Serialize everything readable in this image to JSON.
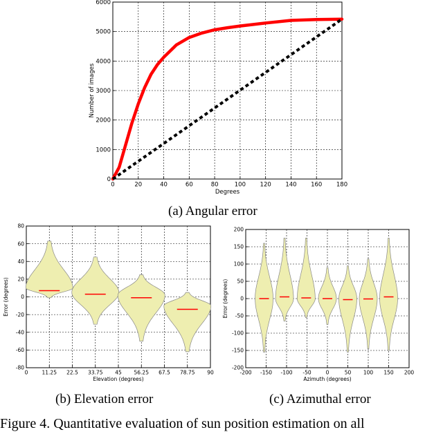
{
  "captions": {
    "a": "(a) Angular error",
    "b": "(b) Elevation error",
    "c": "(c) Azimuthal error",
    "figure": "Figure 4. Quantitative evaluation of sun position estimation on all"
  },
  "chart_data": [
    {
      "type": "line",
      "xlabel": "Degrees",
      "ylabel": "Number of images",
      "xlim": [
        0,
        180
      ],
      "ylim": [
        0,
        6000
      ],
      "xticks": [
        0,
        20,
        40,
        60,
        80,
        100,
        120,
        140,
        160,
        180
      ],
      "yticks": [
        0,
        1000,
        2000,
        3000,
        4000,
        5000,
        6000
      ],
      "grid": true,
      "series": [
        {
          "style": "solid",
          "color": "#ff0000",
          "x": [
            0,
            5,
            10,
            15,
            20,
            25,
            30,
            35,
            40,
            50,
            60,
            70,
            80,
            90,
            100,
            120,
            140,
            160,
            180
          ],
          "y": [
            0,
            400,
            1150,
            1900,
            2550,
            3100,
            3550,
            3880,
            4130,
            4550,
            4800,
            4950,
            5060,
            5130,
            5190,
            5290,
            5380,
            5410,
            5420
          ]
        },
        {
          "style": "dashed",
          "color": "#000000",
          "x": [
            0,
            180
          ],
          "y": [
            0,
            5420
          ]
        }
      ]
    },
    {
      "type": "violin",
      "xlabel": "Elevation (degrees)",
      "ylabel": "Error (degrees)",
      "xlim": [
        0,
        90
      ],
      "ylim": [
        -80,
        80
      ],
      "xticks": [
        "0",
        "11.25",
        "22.5",
        "33.75",
        "45",
        "56.25",
        "67.5",
        "78.75",
        "90"
      ],
      "yticks": [
        -80,
        -60,
        -40,
        -20,
        0,
        20,
        40,
        60,
        80
      ],
      "grid": true,
      "fill_color": "#eeeeb0",
      "median_color": "#ff0000",
      "violins": [
        {
          "x": 11.25,
          "min": -1,
          "max": 63,
          "median": 7,
          "mode": 10
        },
        {
          "x": 33.75,
          "min": -31,
          "max": 45,
          "median": 3,
          "mode": 5
        },
        {
          "x": 56.25,
          "min": -50,
          "max": 25,
          "median": -1,
          "mode": 2
        },
        {
          "x": 78.75,
          "min": -62,
          "max": 5,
          "median": -14,
          "mode": -10
        }
      ]
    },
    {
      "type": "violin",
      "xlabel": "Azimuth (degrees)",
      "ylabel": "Error (degrees)",
      "xlim": [
        -200,
        200
      ],
      "ylim": [
        -200,
        200
      ],
      "xticks": [
        -200,
        -150,
        -100,
        -50,
        0,
        50,
        100,
        150,
        200
      ],
      "yticks": [
        -200,
        -150,
        -100,
        -50,
        0,
        50,
        100,
        150,
        200
      ],
      "grid": true,
      "fill_color": "#eeeeb0",
      "median_color": "#ff0000",
      "violins": [
        {
          "x": -155,
          "min": -155,
          "max": 160,
          "median": 0,
          "mode": 0
        },
        {
          "x": -105,
          "min": -65,
          "max": 175,
          "median": 5,
          "mode": 0
        },
        {
          "x": -52,
          "min": -55,
          "max": 175,
          "median": 2,
          "mode": 0
        },
        {
          "x": 0,
          "min": -75,
          "max": 90,
          "median": 0,
          "mode": 0
        },
        {
          "x": 50,
          "min": -155,
          "max": 95,
          "median": -3,
          "mode": 0
        },
        {
          "x": 100,
          "min": -145,
          "max": 115,
          "median": -1,
          "mode": 0
        },
        {
          "x": 150,
          "min": -150,
          "max": 175,
          "median": 5,
          "mode": 0
        }
      ]
    }
  ]
}
